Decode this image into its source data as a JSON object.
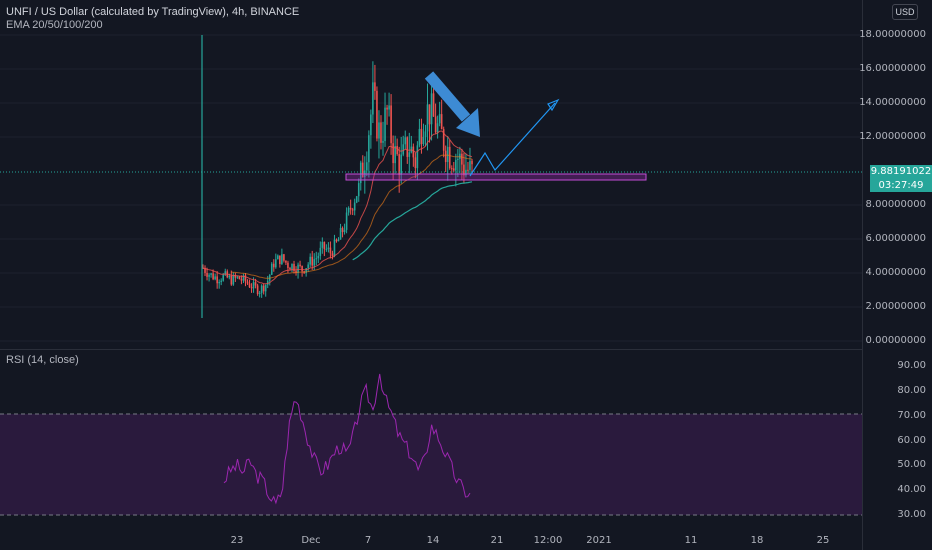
{
  "header": {
    "symbol_line": "UNFI / US Dollar (calculated by TradingView), 4h, BINANCE",
    "indicator_line": "EMA 20/50/100/200",
    "currency_badge": "USD"
  },
  "price_axis": {
    "labels": [
      "18.00000000",
      "16.00000000",
      "14.00000000",
      "12.00000000",
      "9.88191022",
      "8.00000000",
      "6.00000000",
      "4.00000000",
      "2.00000000",
      "0.00000000"
    ],
    "current_price": "9.88191022",
    "countdown": "03:27:49"
  },
  "rsi_panel": {
    "title": "RSI (14, close)",
    "labels": [
      "90.00",
      "80.00",
      "70.00",
      "60.00",
      "50.00",
      "40.00",
      "30.00"
    ]
  },
  "time_axis": {
    "labels": [
      "23",
      "Dec",
      "7",
      "14",
      "21",
      "12:00",
      "2021",
      "11",
      "18",
      "25"
    ]
  },
  "colors": {
    "background": "#131722",
    "up": "#26a69a",
    "down": "#ef5350",
    "rsi_line": "#9c27b0",
    "rsi_band": "#2a1a3d",
    "arrow_blue": "#3d8bd4",
    "projection": "#2196f3",
    "zone": "#9c27b0"
  },
  "chart_data": {
    "type": "candlestick",
    "title": "UNFI / US Dollar (calculated by TradingView), 4h, BINANCE",
    "ylim": [
      0,
      18
    ],
    "x_ticks": [
      "23",
      "Dec",
      "7",
      "14",
      "21",
      "12:00",
      "2021",
      "11",
      "18",
      "25"
    ],
    "close_path": [
      {
        "t": 0,
        "v": 4.3
      },
      {
        "t": 4,
        "v": 3.9
      },
      {
        "t": 8,
        "v": 3.7
      },
      {
        "t": 12,
        "v": 3.8
      },
      {
        "t": 16,
        "v": 3.6
      },
      {
        "t": 20,
        "v": 3.7
      },
      {
        "t": 24,
        "v": 3.5
      },
      {
        "t": 28,
        "v": 3.2
      },
      {
        "t": 32,
        "v": 3.0
      },
      {
        "t": 36,
        "v": 3.4
      },
      {
        "t": 40,
        "v": 4.6
      },
      {
        "t": 44,
        "v": 4.9
      },
      {
        "t": 48,
        "v": 4.5
      },
      {
        "t": 52,
        "v": 4.4
      },
      {
        "t": 56,
        "v": 4.2
      },
      {
        "t": 60,
        "v": 4.6
      },
      {
        "t": 64,
        "v": 4.9
      },
      {
        "t": 68,
        "v": 5.5
      },
      {
        "t": 72,
        "v": 5.2
      },
      {
        "t": 76,
        "v": 5.8
      },
      {
        "t": 80,
        "v": 6.8
      },
      {
        "t": 84,
        "v": 8.0
      },
      {
        "t": 88,
        "v": 9.0
      },
      {
        "t": 92,
        "v": 11.2
      },
      {
        "t": 96,
        "v": 14.2
      },
      {
        "t": 100,
        "v": 12.0
      },
      {
        "t": 104,
        "v": 13.4
      },
      {
        "t": 108,
        "v": 11.0
      },
      {
        "t": 112,
        "v": 10.4
      },
      {
        "t": 116,
        "v": 11.6
      },
      {
        "t": 120,
        "v": 10.6
      },
      {
        "t": 124,
        "v": 13.2
      },
      {
        "t": 128,
        "v": 13.6
      },
      {
        "t": 132,
        "v": 12.6
      },
      {
        "t": 136,
        "v": 11.8
      },
      {
        "t": 140,
        "v": 11.0
      },
      {
        "t": 144,
        "v": 10.8
      },
      {
        "t": 148,
        "v": 10.2
      },
      {
        "t": 152,
        "v": 9.9
      }
    ],
    "rsi": [
      44,
      48,
      50,
      47,
      52,
      46,
      44,
      38,
      34,
      40,
      65,
      78,
      70,
      60,
      52,
      48,
      50,
      55,
      58,
      54,
      62,
      74,
      80,
      72,
      88,
      76,
      70,
      62,
      58,
      54,
      48,
      52,
      66,
      62,
      56,
      50,
      44,
      40,
      38
    ]
  }
}
